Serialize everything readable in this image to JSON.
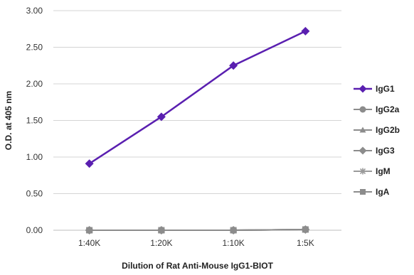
{
  "chart_data": {
    "type": "line",
    "categories": [
      "1:40K",
      "1:20K",
      "1:10K",
      "1:5K"
    ],
    "xlabel": "Dilution of Rat Anti-Mouse IgG1-BIOT",
    "ylabel": "O.D. at 405 nm",
    "ylim": [
      0,
      3
    ],
    "yticks": [
      "0.00",
      "0.50",
      "1.00",
      "1.50",
      "2.00",
      "2.50",
      "3.00"
    ],
    "grid": "horizontal",
    "legend": "right",
    "series": [
      {
        "name": "IgG1",
        "values": [
          0.91,
          1.55,
          2.25,
          2.72
        ],
        "color": "#5a1fb0",
        "marker": "diamond"
      },
      {
        "name": "IgG2a",
        "values": [
          0.0,
          0.0,
          0.0,
          0.01
        ],
        "color": "#8c8c8c",
        "marker": "circle"
      },
      {
        "name": "IgG2b",
        "values": [
          0.0,
          0.0,
          0.0,
          0.01
        ],
        "color": "#8c8c8c",
        "marker": "triangle"
      },
      {
        "name": "IgG3",
        "values": [
          0.0,
          0.0,
          0.0,
          0.01
        ],
        "color": "#8c8c8c",
        "marker": "diamond"
      },
      {
        "name": "IgM",
        "values": [
          0.0,
          0.0,
          0.0,
          0.01
        ],
        "color": "#9a9a9a",
        "marker": "asterisk"
      },
      {
        "name": "IgA",
        "values": [
          0.0,
          0.0,
          0.0,
          0.01
        ],
        "color": "#8c8c8c",
        "marker": "square"
      }
    ]
  }
}
